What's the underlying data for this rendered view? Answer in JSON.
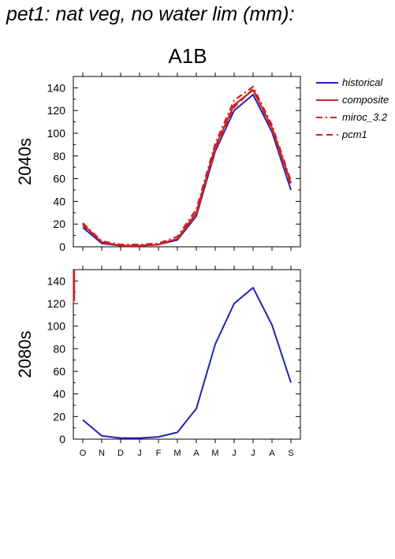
{
  "title": "pet1: nat veg, no water lim (mm):",
  "scenario": "A1B",
  "chart_data": [
    {
      "type": "line",
      "row_label": "2040s",
      "categories": [
        "O",
        "N",
        "D",
        "J",
        "F",
        "M",
        "A",
        "M",
        "J",
        "J",
        "A",
        "S"
      ],
      "ylim": [
        0,
        150
      ],
      "yticks": [
        0,
        20,
        40,
        60,
        80,
        100,
        120,
        140
      ],
      "series": [
        {
          "name": "historical",
          "color": "#2222bb",
          "style": "solid",
          "values": [
            17,
            3,
            1,
            1,
            2,
            6,
            27,
            84,
            120,
            134,
            101,
            50
          ]
        },
        {
          "name": "composite",
          "color": "#cc2222",
          "style": "solid",
          "values": [
            20,
            4,
            1,
            1,
            2,
            7,
            30,
            88,
            125,
            138,
            105,
            56
          ]
        },
        {
          "name": "miroc_3.2",
          "color": "#cc2222",
          "style": "dashdot",
          "values": [
            21,
            5,
            2,
            2,
            3,
            9,
            33,
            91,
            129,
            141,
            107,
            58
          ]
        },
        {
          "name": "pcm1",
          "color": "#cc2222",
          "style": "dashed",
          "values": [
            19,
            4,
            1,
            1,
            2,
            7,
            28,
            85,
            123,
            139,
            103,
            54
          ]
        }
      ]
    },
    {
      "type": "line",
      "row_label": "2080s",
      "categories": [
        "O",
        "N",
        "D",
        "J",
        "F",
        "M",
        "A",
        "M",
        "J",
        "J",
        "A",
        "S"
      ],
      "ylim": [
        0,
        150
      ],
      "yticks": [
        0,
        20,
        40,
        60,
        80,
        100,
        120,
        140
      ],
      "series": [
        {
          "name": "historical",
          "color": "#2222bb",
          "style": "solid",
          "values": [
            17,
            3,
            1,
            1,
            2,
            6,
            27,
            84,
            120,
            134,
            101,
            50
          ]
        }
      ]
    }
  ],
  "legend": [
    {
      "label": "historical",
      "color": "#2222bb",
      "style": "solid"
    },
    {
      "label": "composite",
      "color": "#cc2222",
      "style": "solid"
    },
    {
      "label": "miroc_3.2",
      "color": "#cc2222",
      "style": "dashdot"
    },
    {
      "label": "pcm1",
      "color": "#cc2222",
      "style": "dashed"
    }
  ]
}
